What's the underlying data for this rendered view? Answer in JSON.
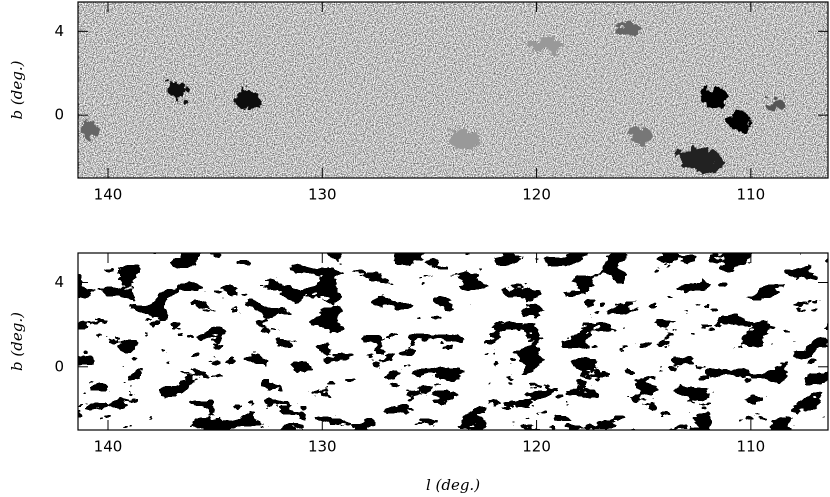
{
  "chart_data": [
    {
      "type": "image",
      "ylabel": "b (deg.)",
      "xlim": [
        141.4,
        106.4
      ],
      "ylim": [
        -3.0,
        5.4
      ],
      "xticks": [
        140,
        130,
        120,
        110
      ],
      "yticks": [
        0,
        4
      ]
    },
    {
      "type": "image",
      "ylabel": "b (deg.)",
      "xlabel": "l (deg.)",
      "xlim": [
        141.4,
        106.4
      ],
      "ylim": [
        -3.0,
        5.4
      ],
      "xticks": [
        140,
        130,
        120,
        110
      ],
      "yticks": [
        0,
        4
      ]
    }
  ]
}
